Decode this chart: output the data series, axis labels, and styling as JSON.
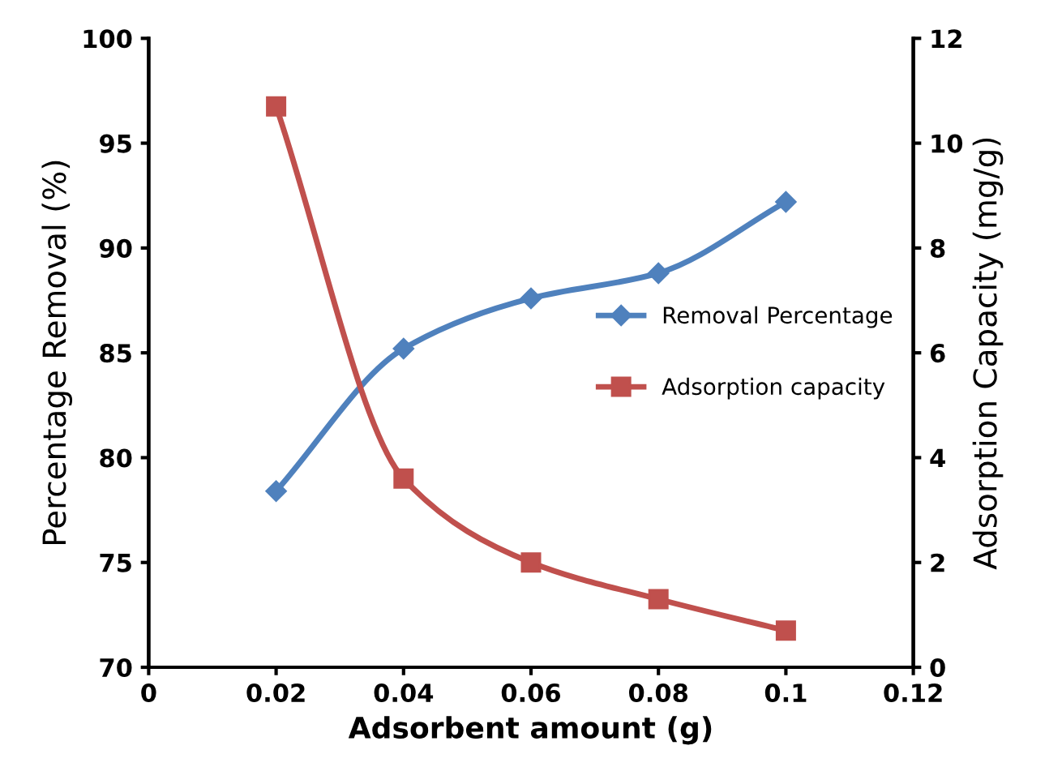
{
  "chart_data": {
    "type": "line",
    "xlabel": "Adsorbent amount (g)",
    "ylabel": "Percentage Removal (%)",
    "y2label": "Adsorption Capacity (mg/g)",
    "x": [
      0.02,
      0.04,
      0.06,
      0.08,
      0.1
    ],
    "series": [
      {
        "name": "Removal Percentage",
        "color": "#4f81bd",
        "marker": "diamond",
        "values": [
          78.4,
          85.2,
          87.6,
          88.8,
          92.2
        ]
      },
      {
        "name": "Adsorption capacity",
        "color": "#c0504d",
        "marker": "square",
        "axis": "y2",
        "values": [
          10.7,
          3.6,
          2.0,
          1.3,
          0.7
        ]
      }
    ],
    "xlim": [
      0,
      0.12
    ],
    "xticks": [
      0,
      0.02,
      0.04,
      0.06,
      0.08,
      0.1,
      0.12
    ],
    "ylim": [
      70,
      100
    ],
    "yticks": [
      70,
      75,
      80,
      85,
      90,
      95,
      100
    ],
    "y2lim": [
      0,
      12
    ],
    "y2ticks": [
      0,
      2,
      4,
      6,
      8,
      10,
      12
    ],
    "grid": false,
    "legend": "right",
    "line_style": "solid"
  }
}
